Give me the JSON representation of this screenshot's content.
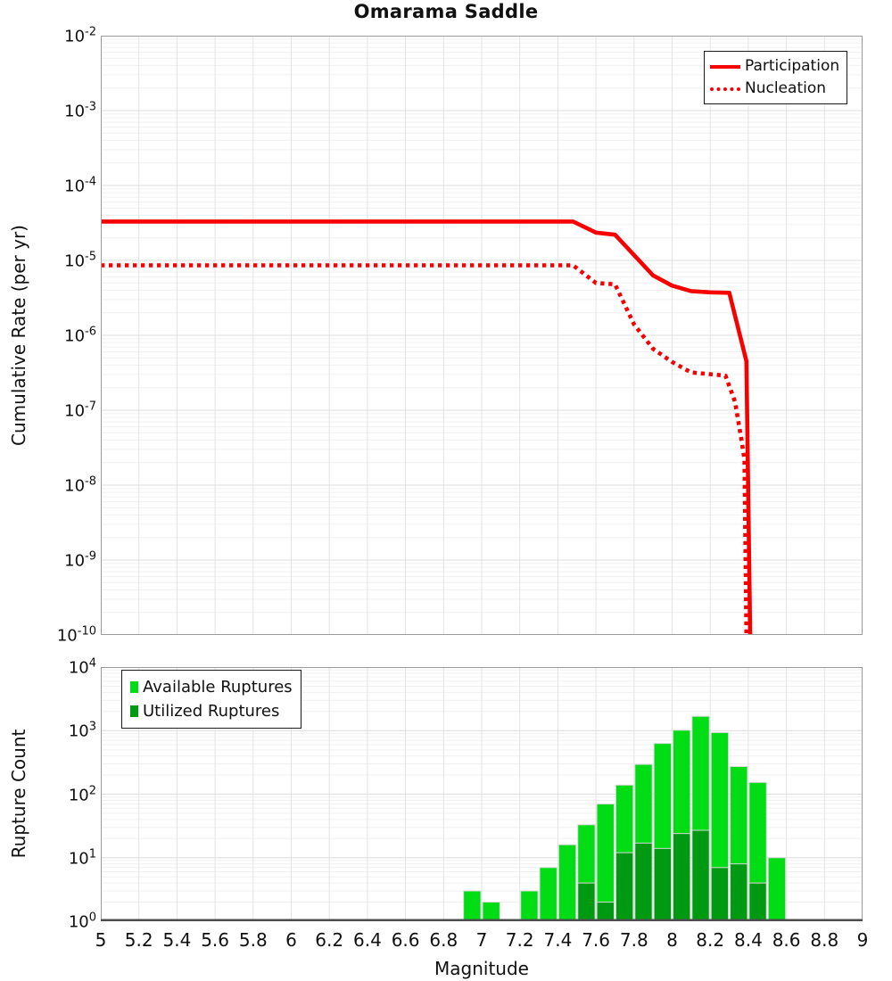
{
  "title": "Omarama Saddle",
  "x_axis": {
    "label": "Magnitude",
    "min": 5,
    "max": 9,
    "ticks": [
      5,
      5.2,
      5.4,
      5.6,
      5.8,
      6,
      6.2,
      6.4,
      6.6,
      6.8,
      7,
      7.2,
      7.4,
      7.6,
      7.8,
      8,
      8.2,
      8.4,
      8.6,
      8.8,
      9
    ],
    "tick_labels": [
      "5",
      "5.2",
      "5.4",
      "5.6",
      "5.8",
      "6",
      "6.2",
      "6.4",
      "6.6",
      "6.8",
      "7",
      "7.2",
      "7.4",
      "7.6",
      "7.8",
      "8",
      "8.2",
      "8.4",
      "8.6",
      "8.8",
      "9"
    ]
  },
  "colors": {
    "red": "#f60000",
    "available_green": "#00dd14",
    "utilized_green": "#009a12",
    "grid_major": "#dcdcdc",
    "grid_minor": "#f0f0f0",
    "grid_vertical": "#e3e3e3",
    "panel_border": "#9a9a9a",
    "axis_heavy": "#4d4d4d"
  },
  "chart_data": [
    {
      "type": "line",
      "title": "Omarama Saddle",
      "xlabel": "Magnitude",
      "ylabel": "Cumulative Rate (per yr)",
      "xlim": [
        5,
        9
      ],
      "ylim": [
        1e-10,
        0.01
      ],
      "yscale": "log",
      "ytick_exponents": [
        -2,
        -3,
        -4,
        -5,
        -6,
        -7,
        -8,
        -9,
        -10
      ],
      "grid": true,
      "legend_position": "top-right",
      "series": [
        {
          "name": "Participation",
          "style": "solid",
          "color": "#f60000",
          "points": [
            [
              5.0,
              3.3e-05
            ],
            [
              7.48,
              3.3e-05
            ],
            [
              7.6,
              2.35e-05
            ],
            [
              7.7,
              2.2e-05
            ],
            [
              7.9,
              6.3e-06
            ],
            [
              8.0,
              4.6e-06
            ],
            [
              8.1,
              3.9e-06
            ],
            [
              8.2,
              3.75e-06
            ],
            [
              8.3,
              3.7e-06
            ],
            [
              8.39,
              4.5e-07
            ],
            [
              8.41,
              1e-10
            ]
          ]
        },
        {
          "name": "Nucleation",
          "style": "dotted",
          "color": "#f60000",
          "points": [
            [
              5.0,
              8.6e-06
            ],
            [
              7.48,
              8.6e-06
            ],
            [
              7.6,
              5e-06
            ],
            [
              7.7,
              4.8e-06
            ],
            [
              7.8,
              1.4e-06
            ],
            [
              7.9,
              6.6e-07
            ],
            [
              8.0,
              4.4e-07
            ],
            [
              8.1,
              3.2e-07
            ],
            [
              8.28,
              2.9e-07
            ],
            [
              8.33,
              1.3e-07
            ],
            [
              8.36,
              4.6e-08
            ],
            [
              8.38,
              2.2e-08
            ],
            [
              8.39,
              1e-10
            ]
          ]
        }
      ]
    },
    {
      "type": "bar",
      "ylabel": "Rupture Count",
      "xlim": [
        5,
        9
      ],
      "ylim": [
        1,
        10000.0
      ],
      "yscale": "log",
      "ytick_exponents": [
        0,
        1,
        2,
        3,
        4
      ],
      "grid": true,
      "legend_position": "top-left",
      "bin_width": 0.1,
      "categories": [
        6.9,
        7.0,
        7.1,
        7.2,
        7.3,
        7.4,
        7.5,
        7.6,
        7.7,
        7.8,
        7.9,
        8.0,
        8.1,
        8.2,
        8.3,
        8.4,
        8.5
      ],
      "series": [
        {
          "name": "Available Ruptures",
          "color": "#00dd14",
          "values": [
            3,
            2,
            0,
            3,
            7,
            16,
            33,
            70,
            139,
            294,
            628,
            1016,
            1678,
            931,
            272,
            153,
            10
          ]
        },
        {
          "name": "Utilized Ruptures",
          "color": "#009a12",
          "values": [
            0,
            0,
            0,
            0,
            0,
            1,
            4,
            2,
            12,
            17,
            14,
            24,
            27,
            7,
            8,
            4,
            0
          ]
        }
      ]
    }
  ]
}
